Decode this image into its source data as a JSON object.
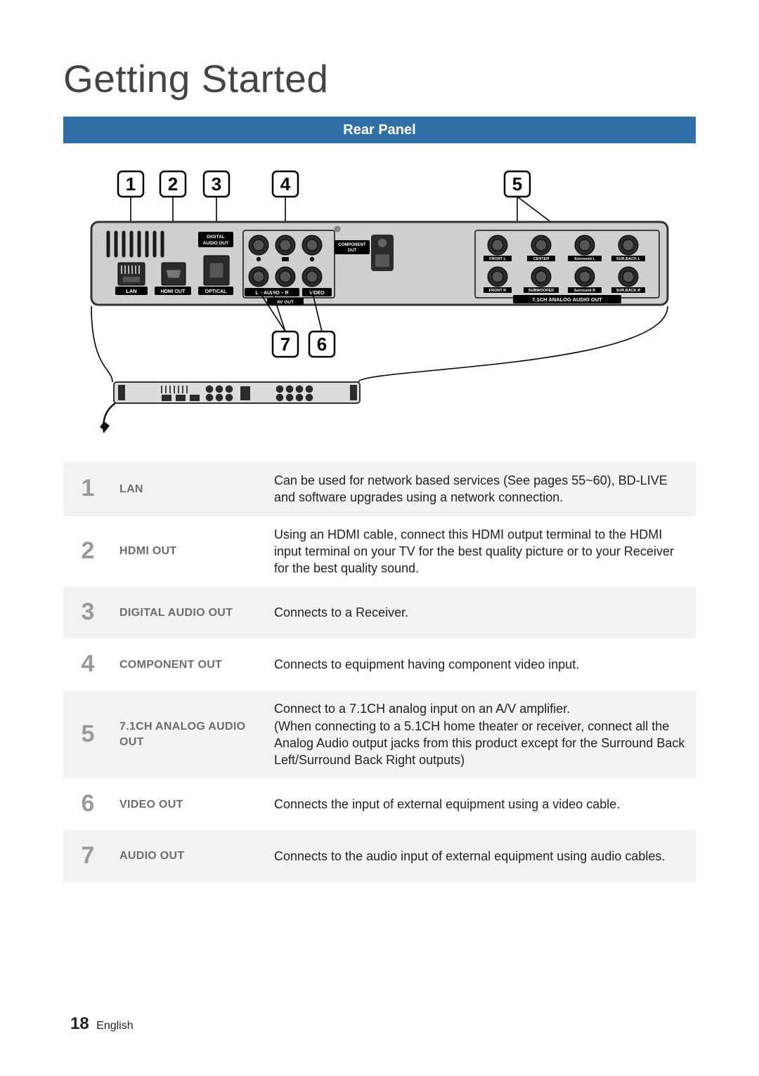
{
  "title": "Getting Started",
  "banner": "Rear Panel",
  "callouts": [
    "1",
    "2",
    "3",
    "4",
    "5",
    "6",
    "7"
  ],
  "panel_port_labels": {
    "lan": "LAN",
    "hdmi": "HDMI OUT",
    "optical": "OPTICAL",
    "digital": "DIGITAL\nAUDIO OUT",
    "component": "COMPONENT\nOUT",
    "audio_l": "– AUDIO –",
    "video": "VIDEO",
    "avout": "AV OUT",
    "analog_title": "7.1CH ANALOG AUDIO OUT",
    "front_l": "FRONT L",
    "center": "CENTER",
    "surround_l": "Surround L",
    "surback_l": "SUR.BACK L",
    "front_r": "FRONT R",
    "subwoofer": "SUBWOOFER",
    "surround_r": "Surround R",
    "surback_r": "SUR.BACK R"
  },
  "rows": [
    {
      "n": "1",
      "label": "LAN",
      "desc": "Can be used for network based services (See pages 55~60), BD-LIVE and software upgrades using a network connection."
    },
    {
      "n": "2",
      "label": "HDMI OUT",
      "desc": "Using an HDMI cable, connect this HDMI output terminal to the HDMI input terminal on your TV for the best quality picture or to your Receiver for the best quality sound."
    },
    {
      "n": "3",
      "label": "DIGITAL AUDIO OUT",
      "desc": "Connects to a Receiver."
    },
    {
      "n": "4",
      "label": "COMPONENT OUT",
      "desc": "Connects to equipment having component video input."
    },
    {
      "n": "5",
      "label": "7.1CH ANALOG AUDIO OUT",
      "desc": "Connect to a 7.1CH analog input on an A/V amplifier.\n(When connecting to a 5.1CH home theater or receiver, connect all the Analog Audio output jacks from this product except for the Surround Back Left/Surround Back Right outputs)"
    },
    {
      "n": "6",
      "label": "VIDEO OUT",
      "desc": "Connects the input of external equipment using a video cable."
    },
    {
      "n": "7",
      "label": "AUDIO OUT",
      "desc": "Connects to the audio input of external equipment using audio cables."
    }
  ],
  "footer": {
    "page": "18",
    "lang": "English"
  },
  "colors": {
    "banner_bg": "#2f6fa8",
    "panel_body": "#cfcfcf",
    "panel_stroke": "#333333",
    "inner_dark": "#2b2b2b",
    "inner_dark2": "#1a1a1a",
    "label_box": "#000000",
    "label_text": "#ffffff",
    "row_alt": "#f2f2f2",
    "num_gray": "#9a9a9a",
    "label_gray": "#6d6d6d"
  }
}
